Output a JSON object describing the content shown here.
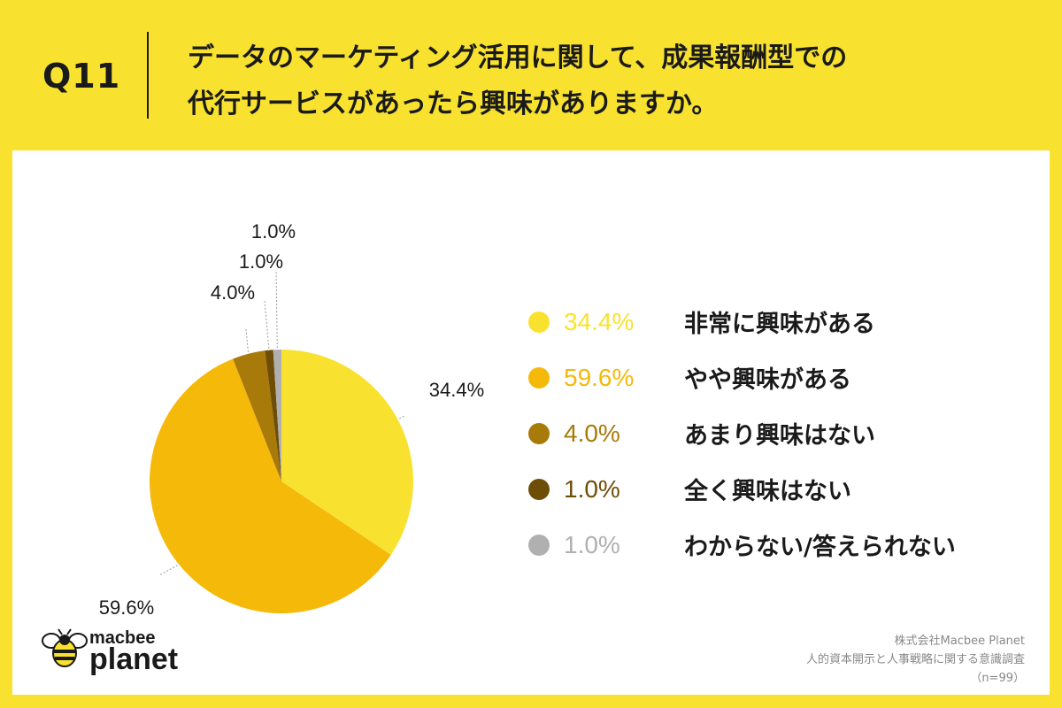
{
  "header": {
    "question_number": "Q11",
    "title_line1": "データのマーケティング活用に関して、成果報酬型での",
    "title_line2": "代行サービスがあったら興味がありますか。"
  },
  "chart_data": {
    "type": "pie",
    "slices": [
      {
        "label": "非常に興味がある",
        "value": 34.4,
        "value_label": "34.4%",
        "color": "#f9e22f"
      },
      {
        "label": "やや興味がある",
        "value": 59.6,
        "value_label": "59.6%",
        "color": "#f5b90a"
      },
      {
        "label": "あまり興味はない",
        "value": 4.0,
        "value_label": "4.0%",
        "color": "#a87a09"
      },
      {
        "label": "全く興味はない",
        "value": 1.0,
        "value_label": "1.0%",
        "color": "#6e4d06"
      },
      {
        "label": "わからない/答えられない",
        "value": 1.0,
        "value_label": "1.0%",
        "color": "#b0b0b0"
      }
    ],
    "legend_position": "right"
  },
  "logo": {
    "word1": "macbee",
    "word2": "planet"
  },
  "footer": {
    "company": "株式会社Macbee Planet",
    "survey": "人的資本開示と人事戦略に関する意識調査",
    "sample": "（n=99）"
  }
}
